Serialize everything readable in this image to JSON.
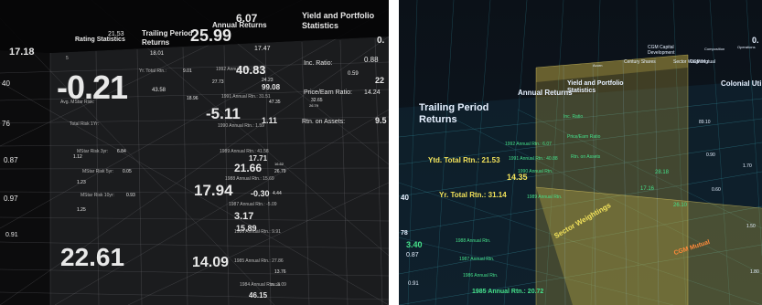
{
  "left_panel": {
    "headings": {
      "rating_statistics": "Rating Statistics",
      "trailing_period_returns": "Trailing Period Returns",
      "annual_returns": "Annual Returns",
      "yield_portfolio": "Yield and Portfolio Statistics"
    },
    "big_values": {
      "v_neg021": "-0.21",
      "v_2261": "22.61",
      "v_2599": "25.99",
      "v_607": "6.07",
      "v_neg511": "-5.11",
      "v_1794": "17.94",
      "v_1409": "14.09",
      "v_1718": "17.18"
    },
    "labels": {
      "ytd_total_rtn": "Yr. Total Rtn.:",
      "mstar_risk": "Avg. MStar Risk:",
      "inc_ratio": "Inc. Ratio:",
      "price_earn": "Price/Earn Ratio:",
      "rtn_on_assets": "Rtn. on Assets:",
      "mstar_risk_3yr": "MStar Risk 3yr:",
      "mstar_risk_5yr": "MStar Risk 5yr:",
      "mstar_risk_10yr": "MStar Risk 10yr:",
      "total_risk": "Total Risk 1Yr:"
    },
    "annual_rows": [
      "1992 Annual Rtn.: 26.69",
      "1991 Annual Rtn.: 31.51",
      "1990 Annual Rtn.: 1.59",
      "1989 Annual Rtn.: 41.58",
      "1988 Annual Rtn.: 15.69",
      "1987 Annual Rtn.: -5.09",
      "1986 Annual Rtn.: 9.91",
      "1985 Annual Rtn.: 27.86",
      "1984 Annual Rtn.: 3.09"
    ],
    "small_values": {
      "a": "21.53",
      "b": "18.01",
      "c": "17.47",
      "d": "40.83",
      "e": "24.23",
      "f": "99.08",
      "g": "43.58",
      "h": "18.96",
      "i": "27.73",
      "j": "47.35",
      "k": "32.65",
      "l": "26.79",
      "m": "1.11",
      "n": "9.5",
      "o": "17.71",
      "p": "21.66",
      "q": "26.79",
      "r": "-0.30",
      "s": "3.17",
      "t": "15.89",
      "u": "46.15",
      "v": "0.88",
      "w": "0.59",
      "x": "22",
      "y": "14.24",
      "z": "0.87",
      "aa": "0.97",
      "ab": "0.91",
      "ac": "1.12",
      "ad": "1.23",
      "ae": "1.25",
      "af": "0.",
      "ag": "5",
      "ah": "40",
      "ai": "76",
      "aj": "6.84",
      "ak": "0.05",
      "al": "0.93",
      "am": "9.01",
      "an": "16.62",
      "ao": "4.44",
      "ap": "23.25",
      "aq": "13.76"
    }
  },
  "right_panel": {
    "headings": {
      "trailing_period_returns": "Trailing Period Returns",
      "annual_returns": "Annual Returns",
      "yield_portfolio": "Yield and Portfolio Statistics",
      "colonial_utility": "Colonial Utilit",
      "cgm_mutual": "CGM Mutual",
      "century_shares": "Century Shares",
      "cgm_capital": "CGM Capital Development",
      "sector_weighting": "Sector Weighting",
      "composition": "Composition",
      "operations": "Operations",
      "acorn": "Acorn",
      "sector_weightings_diag": "Sector Weightings"
    },
    "rows": {
      "ytd_total": "Ytd. Total Rtn.: 21.53",
      "yr_total": "Yr. Total Rtn.: 31.14",
      "yr_val": "14.35",
      "r1992": "1992 Annual Rtn.: 6.07",
      "r1991": "1991 Annual Rtn.: 40.88",
      "r1990": "1990 Annual Rtn.",
      "r1989": "1989 Annual Rtn.",
      "r1988": "1988 Annual Rtn.",
      "r1987": "1987 Annual Rtn.",
      "r1986": "1986 Annual Rtn.",
      "r1985": "1985 Annual Rtn.: 20.72",
      "price_earn": "Price/Earn Ratio",
      "rtn_assets": "Rtn. on Assets",
      "inc_ratio": "Inc. Ratio",
      "cgm_orange": "CGM Mutual"
    },
    "values": {
      "v340": "3.40",
      "v087": "0.87",
      "v091": "0.91",
      "v040": "40",
      "v078": "78",
      "v0": "0.",
      "v8910": "89.10",
      "v170": "1.70",
      "v150": "1.50",
      "v180": "1.80",
      "v090": "0.90",
      "v060": "0.60",
      "v2818": "28.18",
      "v1716": "17.16",
      "v2610": "26.10"
    }
  },
  "colors": {
    "left_bg": "#050506",
    "right_bg": "#0a1018",
    "yellow_plane": "#c8b040",
    "teal_grid": "#1e6e7a",
    "label_green": "#45e08a",
    "label_yellow": "#f2e25a",
    "label_orange": "#ff8a3a"
  }
}
